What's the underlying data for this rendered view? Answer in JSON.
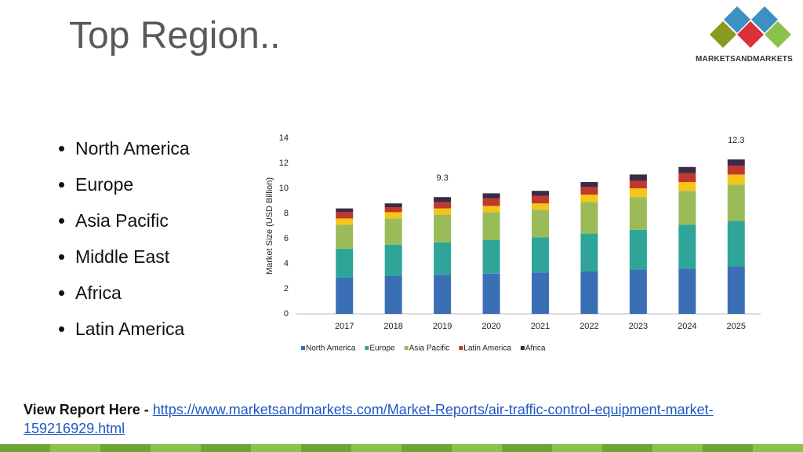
{
  "title": "Top Region..",
  "logo": "MARKETSANDMARKETS",
  "bullets": [
    "North America",
    "Europe",
    "Asia Pacific",
    "Middle East",
    "Africa",
    "Latin America"
  ],
  "chart_data": {
    "type": "stacked_bar",
    "y_label": "Market Size (USD Billion)",
    "categories": [
      "2017",
      "2018",
      "2019",
      "2020",
      "2021",
      "2022",
      "2023",
      "2024",
      "2025"
    ],
    "series": [
      {
        "name": "North America",
        "color": "#3a6fb5",
        "values": [
          2.9,
          3.0,
          3.1,
          3.2,
          3.3,
          3.4,
          3.5,
          3.6,
          3.8
        ]
      },
      {
        "name": "Europe",
        "color": "#2fa59a",
        "values": [
          2.3,
          2.5,
          2.6,
          2.7,
          2.8,
          3.0,
          3.2,
          3.5,
          3.6
        ]
      },
      {
        "name": "Asia Pacific",
        "color": "#9bbb59",
        "values": [
          1.9,
          2.1,
          2.2,
          2.2,
          2.2,
          2.5,
          2.6,
          2.7,
          2.9
        ]
      },
      {
        "name": null,
        "color": "#f5c518",
        "values": [
          0.5,
          0.5,
          0.5,
          0.5,
          0.5,
          0.6,
          0.7,
          0.7,
          0.8
        ]
      },
      {
        "name": "Latin America",
        "color": "#c0392b",
        "values": [
          0.5,
          0.4,
          0.5,
          0.6,
          0.6,
          0.6,
          0.6,
          0.7,
          0.7
        ]
      },
      {
        "name": "Africa",
        "color": "#3b2a48",
        "values": [
          0.3,
          0.3,
          0.4,
          0.4,
          0.4,
          0.4,
          0.5,
          0.5,
          0.5
        ]
      }
    ],
    "annotations": [
      {
        "category": "2019",
        "text": "9.3"
      },
      {
        "category": "2025",
        "text": "12.3"
      }
    ],
    "ylim": [
      0,
      14
    ],
    "yticks": [
      0,
      2,
      4,
      6,
      8,
      10,
      12,
      14
    ],
    "grid": false
  },
  "footer": {
    "label": "View Report Here - ",
    "link": "https://www.marketsandmarkets.com/Market-Reports/air-traffic-control-equipment-market-159216929.html"
  }
}
